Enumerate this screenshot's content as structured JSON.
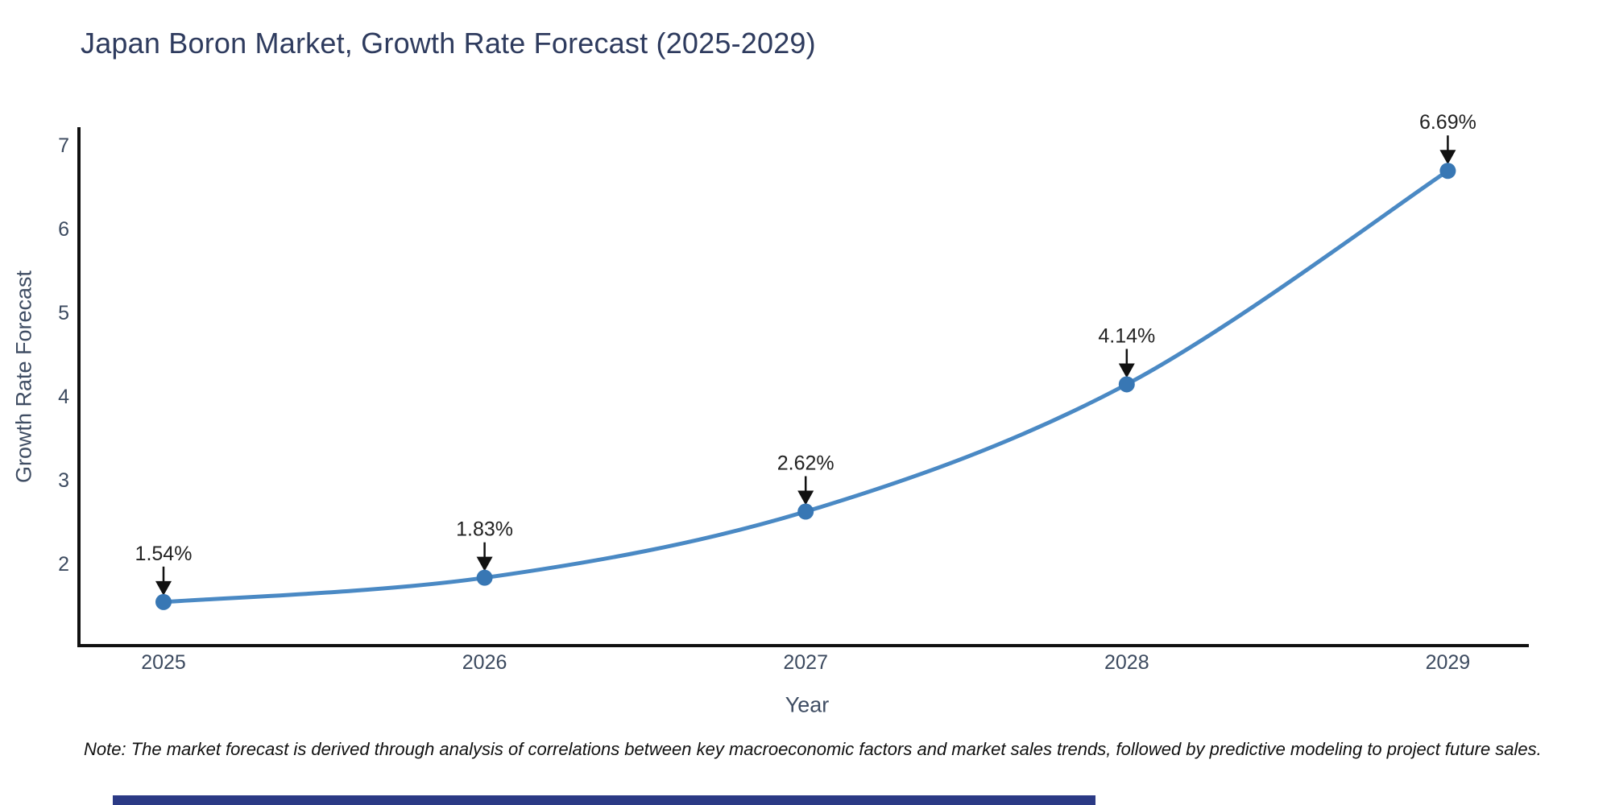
{
  "chart": {
    "title": "Japan Boron Market, Growth Rate Forecast (2025-2029)",
    "xlabel": "Year",
    "ylabel": "Growth Rate Forecast",
    "note": "Note: The market forecast is derived through analysis of correlations between key macroeconomic factors and market sales trends, followed by predictive modeling to project future sales."
  },
  "chart_data": {
    "type": "line",
    "title": "Japan Boron Market, Growth Rate Forecast (2025-2029)",
    "xlabel": "Year",
    "ylabel": "Growth Rate Forecast",
    "categories": [
      "2025",
      "2026",
      "2027",
      "2028",
      "2029"
    ],
    "series": [
      {
        "name": "Growth Rate Forecast",
        "values": [
          1.54,
          1.83,
          2.62,
          4.14,
          6.69
        ]
      }
    ],
    "data_labels": [
      "1.54%",
      "1.83%",
      "2.62%",
      "4.14%",
      "6.69%"
    ],
    "yticks": [
      2,
      3,
      4,
      5,
      6,
      7
    ],
    "ylim": [
      1.0,
      7.2
    ],
    "grid": false,
    "legend": "none",
    "line_shape": "spline",
    "marker_style": "circle",
    "annotation_style": "text-with-down-arrow"
  },
  "colors": {
    "line": "#4a89c4",
    "marker": "#3877b4",
    "axis_line": "#111111",
    "tick_text": "#3c4a5f",
    "axis_title_text": "#3f4d63",
    "chart_title_text": "#2e3b5e",
    "annotation_text": "#222222",
    "annotation_arrow": "#111111",
    "note_text": "#111111",
    "footer_bar": "#2b3a85",
    "background": "#ffffff"
  }
}
